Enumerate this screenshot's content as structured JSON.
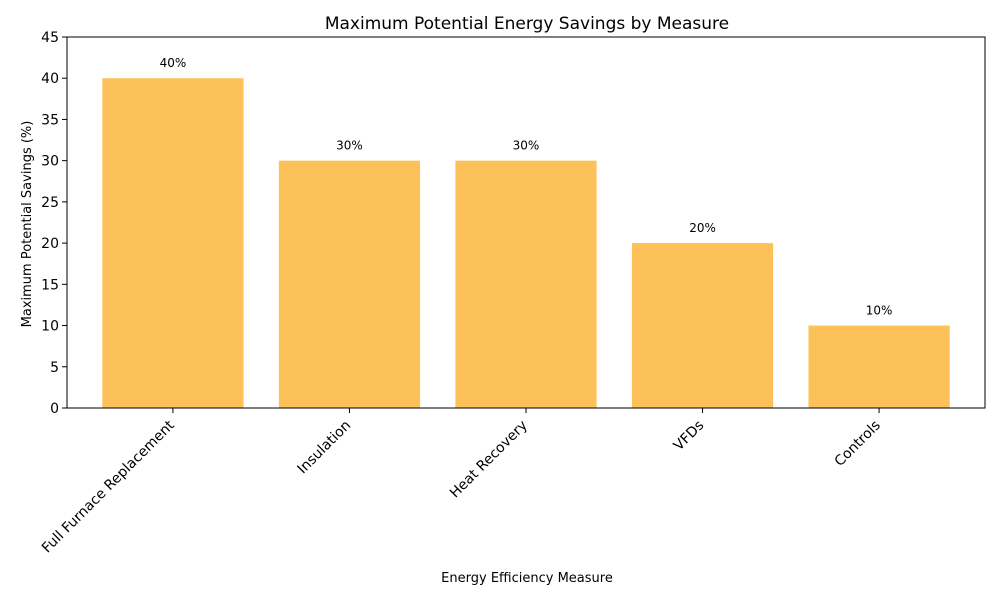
{
  "chart_data": {
    "type": "bar",
    "title": "Maximum Potential Energy Savings by Measure",
    "xlabel": "Energy Efficiency Measure",
    "ylabel": "Maximum Potential Savings (%)",
    "categories": [
      "Full Furnace Replacement",
      "Insulation",
      "Heat Recovery",
      "VFDs",
      "Controls"
    ],
    "values": [
      40,
      30,
      30,
      20,
      10
    ],
    "data_labels": [
      "40%",
      "30%",
      "30%",
      "20%",
      "10%"
    ],
    "ylim": [
      0,
      45
    ],
    "yticks": [
      0,
      5,
      10,
      15,
      20,
      25,
      30,
      35,
      40,
      45
    ],
    "bar_color": "#FDC15A",
    "grid": false,
    "legend": "none"
  }
}
